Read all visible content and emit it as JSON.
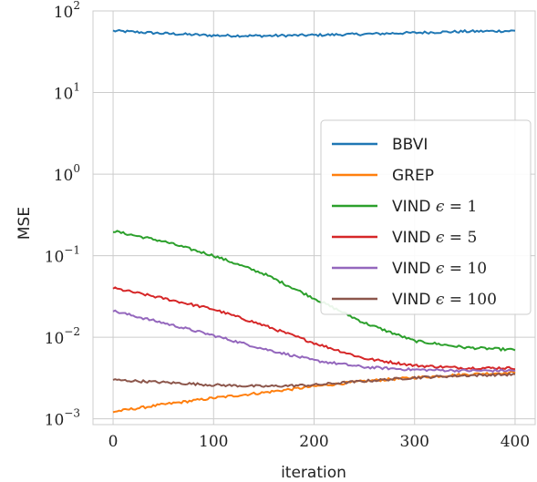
{
  "chart_data": {
    "type": "line",
    "xlabel": "iteration",
    "ylabel": "MSE",
    "xlim": [
      -20,
      420
    ],
    "ylim": [
      0.00085,
      100
    ],
    "yscale": "log",
    "grid": true,
    "legend_position": "center-right",
    "x_ticks": [
      {
        "value": 0,
        "label": "0"
      },
      {
        "value": 100,
        "label": "100"
      },
      {
        "value": 200,
        "label": "200"
      },
      {
        "value": 300,
        "label": "300"
      },
      {
        "value": 400,
        "label": "400"
      }
    ],
    "y_ticks": [
      {
        "value": 0.001,
        "base": "10",
        "exp": "−3"
      },
      {
        "value": 0.01,
        "base": "10",
        "exp": "−2"
      },
      {
        "value": 0.1,
        "base": "10",
        "exp": "−1"
      },
      {
        "value": 1,
        "base": "10",
        "exp": "0"
      },
      {
        "value": 10,
        "base": "10",
        "exp": "1"
      },
      {
        "value": 100,
        "base": "10",
        "exp": "2"
      }
    ],
    "series": [
      {
        "name": "BBVI",
        "color": "#1f77b4",
        "x": [
          0,
          50,
          100,
          150,
          200,
          250,
          300,
          350,
          400
        ],
        "values": [
          57,
          53,
          50,
          49.5,
          50.5,
          52,
          54,
          56,
          57
        ]
      },
      {
        "name": "GREP",
        "color": "#ff7f0e",
        "x": [
          0,
          50,
          100,
          150,
          200,
          250,
          300,
          350,
          400
        ],
        "values": [
          0.00122,
          0.0015,
          0.0018,
          0.0021,
          0.0025,
          0.0029,
          0.0032,
          0.0035,
          0.0037
        ]
      },
      {
        "name": "VIND ϵ = 1",
        "color": "#2ca02c",
        "x": [
          0,
          50,
          100,
          150,
          200,
          250,
          300,
          350,
          400
        ],
        "values": [
          0.2,
          0.15,
          0.1,
          0.06,
          0.03,
          0.015,
          0.009,
          0.0075,
          0.007
        ]
      },
      {
        "name": "VIND ϵ = 5",
        "color": "#d62728",
        "x": [
          0,
          50,
          100,
          150,
          200,
          250,
          300,
          350,
          400
        ],
        "values": [
          0.04,
          0.03,
          0.022,
          0.014,
          0.0085,
          0.0055,
          0.0045,
          0.0042,
          0.0042
        ]
      },
      {
        "name": "VIND ϵ = 10",
        "color": "#9467bd",
        "x": [
          0,
          50,
          100,
          150,
          200,
          250,
          300,
          350,
          400
        ],
        "values": [
          0.021,
          0.015,
          0.0105,
          0.0072,
          0.0052,
          0.0043,
          0.004,
          0.0039,
          0.0039
        ]
      },
      {
        "name": "VIND ϵ = 100",
        "color": "#8c564b",
        "x": [
          0,
          50,
          100,
          150,
          200,
          250,
          300,
          350,
          400
        ],
        "values": [
          0.003,
          0.0028,
          0.0026,
          0.0025,
          0.0026,
          0.0029,
          0.0032,
          0.0034,
          0.0035
        ]
      }
    ],
    "legend": [
      {
        "label": "BBVI",
        "symbol": "",
        "rhs": ""
      },
      {
        "label": "GREP",
        "symbol": "",
        "rhs": ""
      },
      {
        "label": "VIND",
        "symbol": "ϵ",
        "rhs": "= 1"
      },
      {
        "label": "VIND",
        "symbol": "ϵ",
        "rhs": "= 5"
      },
      {
        "label": "VIND",
        "symbol": "ϵ",
        "rhs": "= 10"
      },
      {
        "label": "VIND",
        "symbol": "ϵ",
        "rhs": "= 100"
      }
    ]
  }
}
